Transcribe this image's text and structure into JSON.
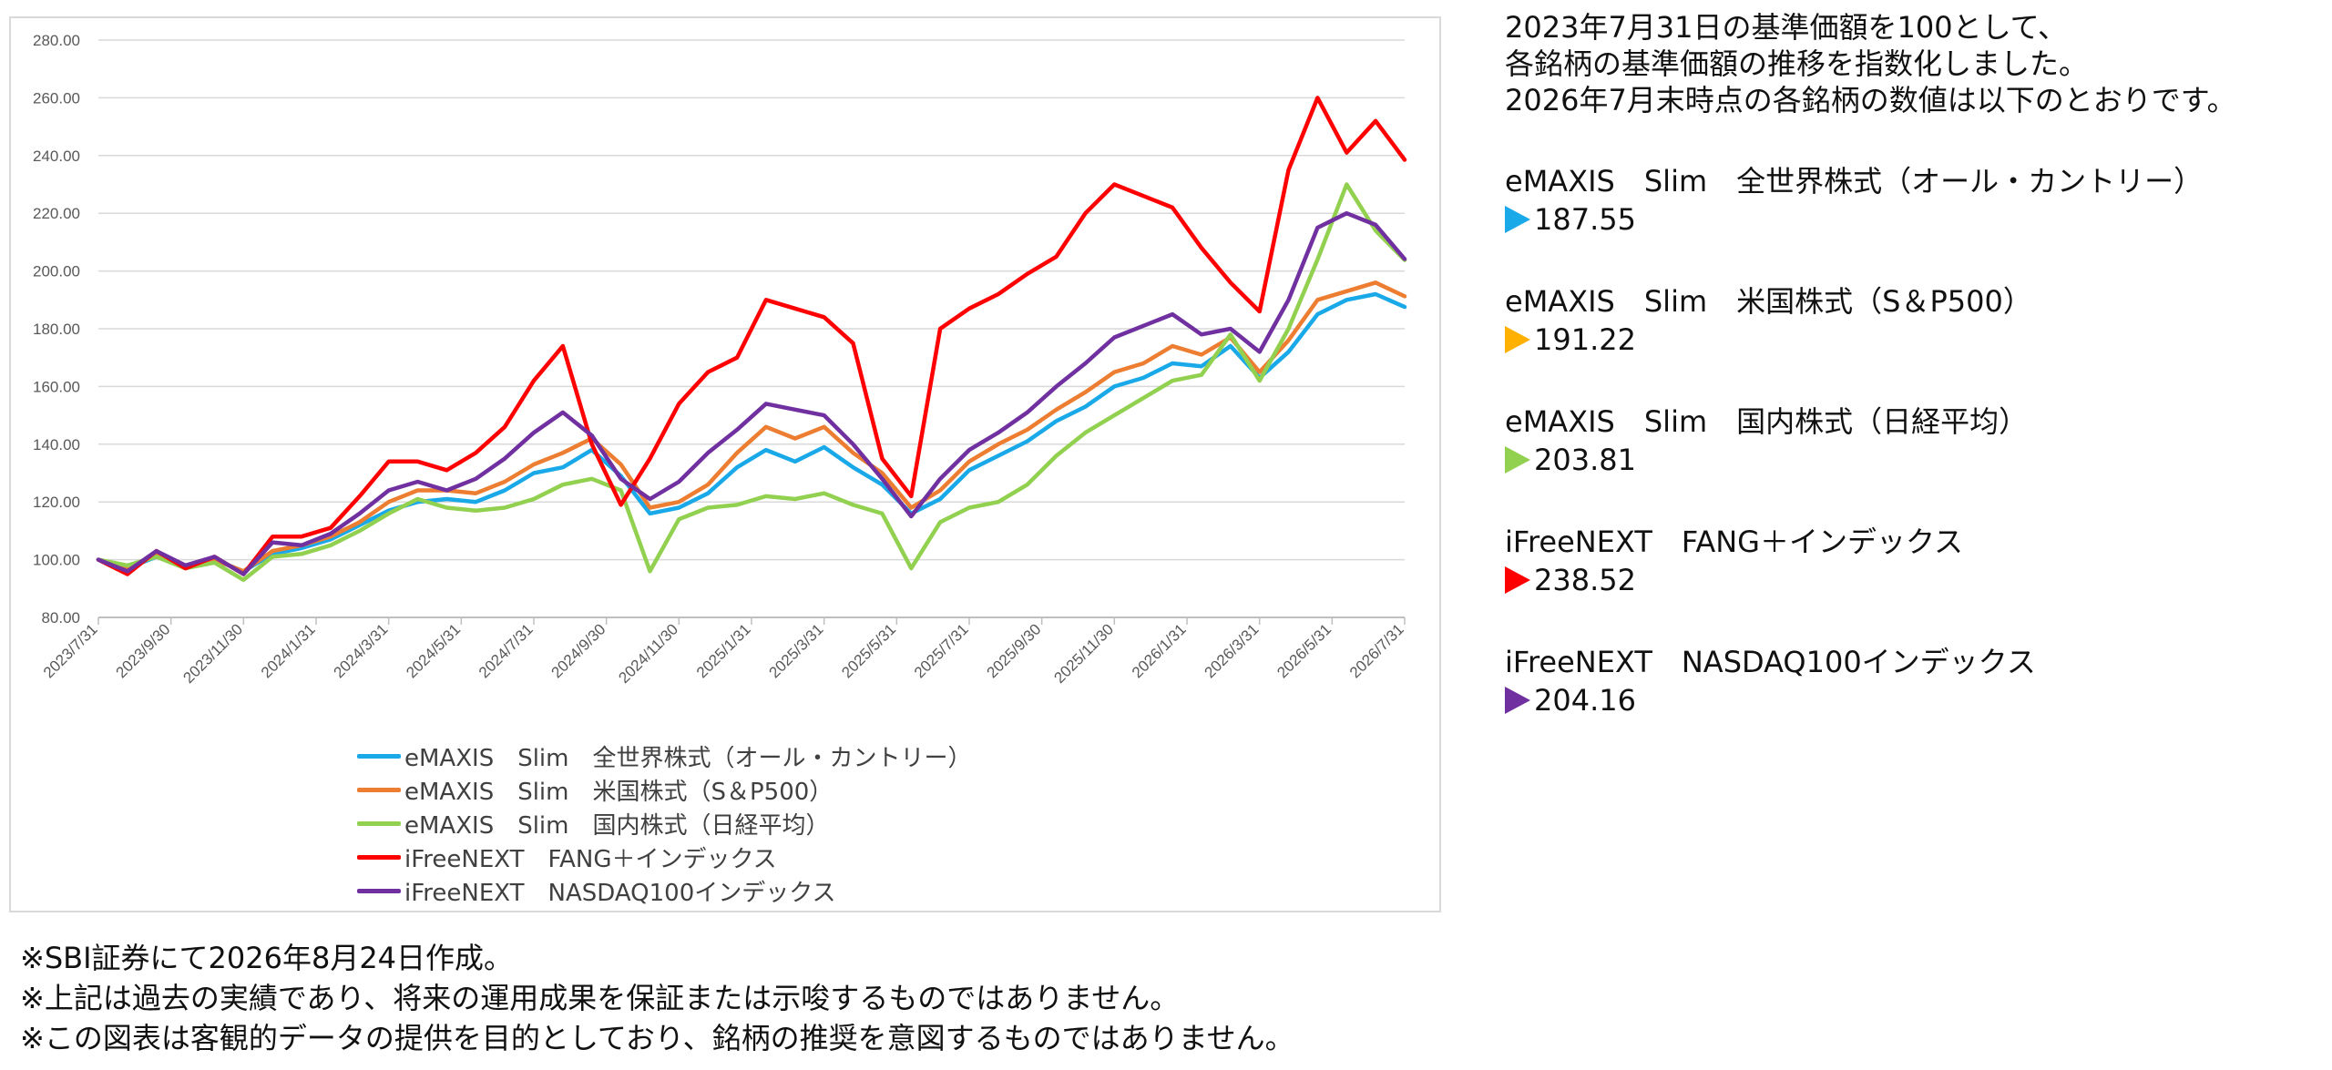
{
  "chart_data": {
    "type": "line",
    "ylim": [
      80,
      280
    ],
    "y_ticks": [
      "80.00",
      "100.00",
      "120.00",
      "140.00",
      "160.00",
      "180.00",
      "200.00",
      "220.00",
      "240.00",
      "260.00",
      "280.00"
    ],
    "x_ticks": [
      "2023/7/31",
      "2023/9/30",
      "2023/11/30",
      "2024/1/31",
      "2024/3/31",
      "2024/5/31",
      "2024/7/31",
      "2024/9/30",
      "2024/11/30",
      "2025/1/31",
      "2025/3/31",
      "2025/5/31",
      "2025/7/31",
      "2025/9/30",
      "2025/11/30",
      "2026/1/31",
      "2026/3/31",
      "2026/5/31",
      "2026/7/31"
    ],
    "grid": true,
    "legend_position": "bottom",
    "series": [
      {
        "name": "eMAXIS　Slim　全世界株式（オール・カントリー）",
        "color": "#1aa9e8",
        "values": [
          100,
          97,
          101,
          98,
          100,
          96,
          102,
          104,
          107,
          112,
          117,
          120,
          121,
          120,
          124,
          130,
          132,
          138,
          129,
          116,
          118,
          123,
          132,
          138,
          134,
          139,
          132,
          126,
          116,
          121,
          131,
          136,
          141,
          148,
          153,
          160,
          163,
          168,
          167,
          174,
          163,
          172,
          185,
          190,
          192,
          187.55
        ]
      },
      {
        "name": "eMAXIS　Slim　米国株式（S＆P500）",
        "color": "#ed7d31",
        "values": [
          100,
          97,
          102,
          98,
          100,
          96,
          103,
          105,
          108,
          113,
          120,
          124,
          124,
          123,
          127,
          133,
          137,
          142,
          133,
          118,
          120,
          126,
          137,
          146,
          142,
          146,
          137,
          130,
          118,
          124,
          134,
          140,
          145,
          152,
          158,
          165,
          168,
          174,
          171,
          177,
          165,
          176,
          190,
          193,
          196,
          191.22
        ]
      },
      {
        "name": "eMAXIS　Slim　国内株式（日経平均）",
        "color": "#92d050",
        "values": [
          100,
          98,
          101,
          97,
          99,
          93,
          101,
          102,
          105,
          110,
          116,
          121,
          118,
          117,
          118,
          121,
          126,
          128,
          124,
          96,
          114,
          118,
          119,
          122,
          121,
          123,
          119,
          116,
          97,
          113,
          118,
          120,
          126,
          136,
          144,
          150,
          156,
          162,
          164,
          178,
          162,
          180,
          204,
          230,
          214,
          203.81
        ]
      },
      {
        "name": "iFreeNEXT　FANG＋インデックス",
        "color": "#ff0000",
        "values": [
          100,
          95,
          103,
          97,
          101,
          95,
          108,
          108,
          111,
          122,
          134,
          134,
          131,
          137,
          146,
          162,
          174,
          140,
          119,
          135,
          154,
          165,
          170,
          190,
          187,
          184,
          175,
          135,
          122,
          180,
          187,
          192,
          199,
          205,
          220,
          230,
          226,
          222,
          208,
          196,
          186,
          235,
          260,
          241,
          252,
          238.52
        ]
      },
      {
        "name": "iFreeNEXT　NASDAQ100インデックス",
        "color": "#7030a0",
        "values": [
          100,
          96,
          103,
          98,
          101,
          95,
          106,
          105,
          109,
          116,
          124,
          127,
          124,
          128,
          135,
          144,
          151,
          143,
          128,
          121,
          127,
          137,
          145,
          154,
          152,
          150,
          140,
          128,
          115,
          128,
          138,
          144,
          151,
          160,
          168,
          177,
          181,
          185,
          178,
          180,
          172,
          190,
          215,
          220,
          216,
          204.16
        ]
      }
    ]
  },
  "side": {
    "intro": [
      "2023年7月31日の基準価額を100として、",
      "各銘柄の基準価額の推移を指数化しました。",
      "2026年7月末時点の各銘柄の数値は以下のとおりです。"
    ],
    "funds": [
      {
        "name": "eMAXIS　Slim　全世界株式（オール・カントリー）",
        "value": "187.55",
        "color": "#1aa9e8"
      },
      {
        "name": "eMAXIS　Slim　米国株式（S＆P500）",
        "value": "191.22",
        "color": "#ffb000"
      },
      {
        "name": "eMAXIS　Slim　国内株式（日経平均）",
        "value": "203.81",
        "color": "#92d050"
      },
      {
        "name": "iFreeNEXT　FANG＋インデックス",
        "value": "238.52",
        "color": "#ff0000"
      },
      {
        "name": "iFreeNEXT　NASDAQ100インデックス",
        "value": "204.16",
        "color": "#7030a0"
      }
    ]
  },
  "notes": [
    "※SBI証券にて2026年8月24日作成。",
    "※上記は過去の実績であり、将来の運用成果を保証または示唆するものではありません。",
    "※この図表は客観的データの提供を目的としており、銘柄の推奨を意図するものではありません。"
  ]
}
